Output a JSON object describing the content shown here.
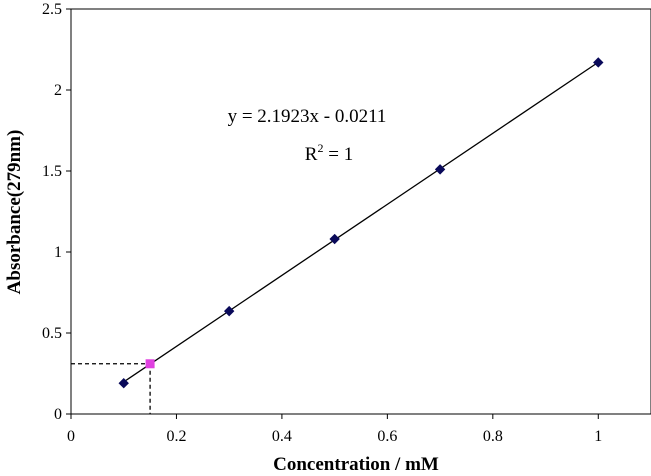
{
  "chart_data": {
    "type": "scatter",
    "xlabel": "Concentration / mM",
    "ylabel": "Absorbance(279nm)",
    "xlim": [
      0,
      1.1
    ],
    "ylim": [
      0,
      2.5
    ],
    "xticks": [
      "0",
      "0.2",
      "0.4",
      "0.6",
      "0.8",
      "1"
    ],
    "xtick_values": [
      0,
      0.2,
      0.4,
      0.6,
      0.8,
      1
    ],
    "yticks": [
      "0",
      "0.5",
      "1",
      "1.5",
      "2",
      "2.5"
    ],
    "ytick_values": [
      0,
      0.5,
      1,
      1.5,
      2,
      2.5
    ],
    "grid": false,
    "series": [
      {
        "marker": "diamond",
        "color": "#0a0a5a",
        "x": [
          0.1,
          0.3,
          0.5,
          0.7,
          1.0
        ],
        "y": [
          0.19,
          0.635,
          1.08,
          1.51,
          2.17
        ]
      },
      {
        "marker": "square",
        "color": "#e040e0",
        "x": [
          0.15
        ],
        "y": [
          0.31
        ]
      }
    ],
    "trendline": {
      "slope": 2.1923,
      "intercept": -0.0211,
      "x_range": [
        0.1,
        1.0
      ],
      "equation_text": "y = 2.1923x - 0.0211",
      "r2_prefix": "R",
      "r2_sup": "2",
      "r2_suffix": " = 1"
    },
    "reference_lines": {
      "x": 0.15,
      "y": 0.31,
      "style": "dashed"
    }
  }
}
